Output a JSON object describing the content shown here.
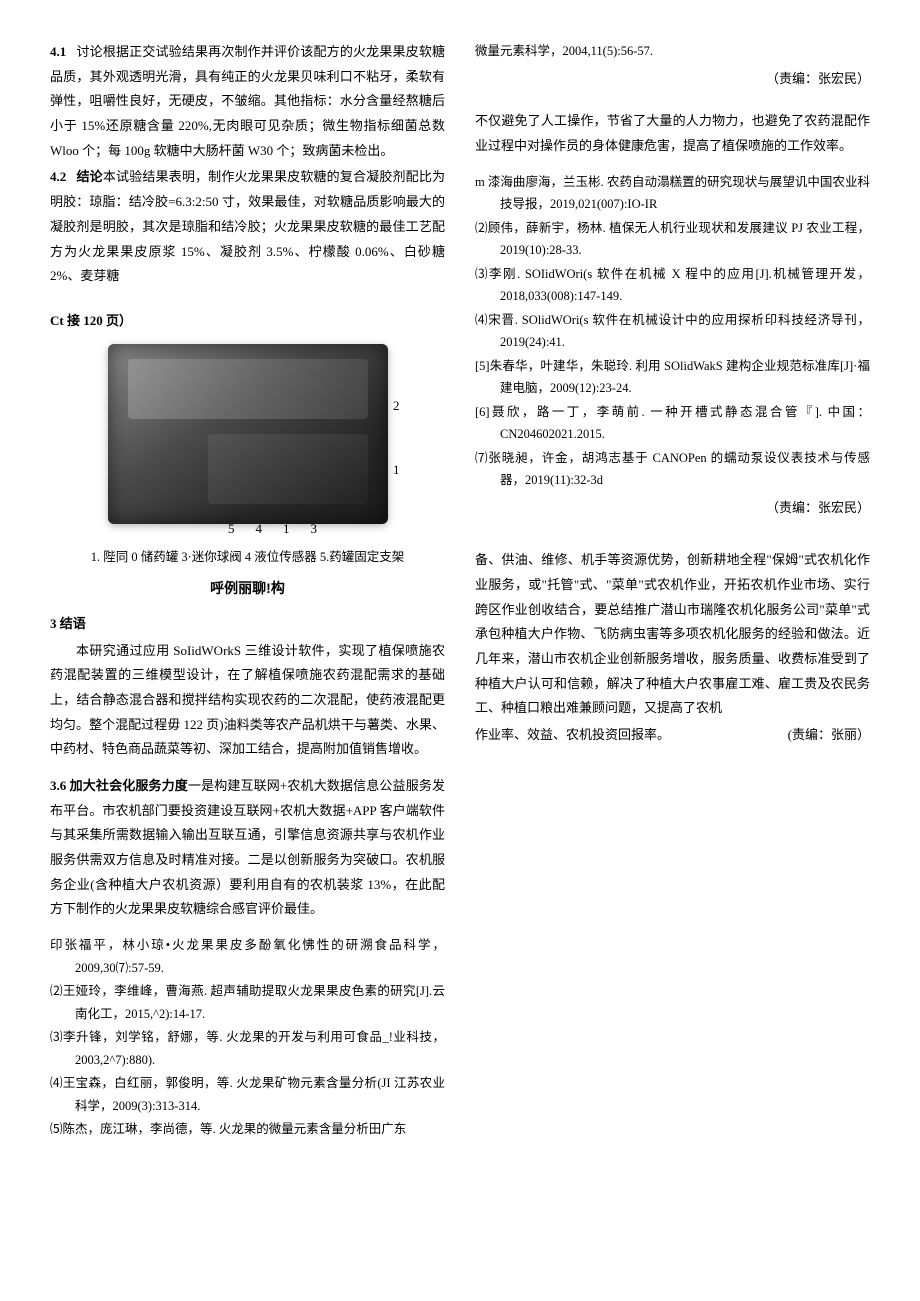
{
  "leftCol": {
    "p41": {
      "num": "4.1",
      "text": "讨论根据正交试验结果再次制作并评价该配方的火龙果果皮软糖品质，其外观透明光滑，具有纯正的火龙果贝味利口不粘牙，柔软有弹性，咀嚼性良好，无硬皮，不皱缩。其他指标：水分含量经熬糖后小于 15%还原糖含量 220%,无肉眼可见杂质；微生物指标细菌总数 Wloo 个；每 100g 软糖中大肠杆菌 W30 个；致病菌未检出。"
    },
    "p42": {
      "num": "4.2",
      "label": "结论",
      "text": "本试验结果表明，制作火龙果果皮软糖的复合凝胶剂配比为明胶：琼脂：结冷胶=6.3:2:50 寸，效果最佳，对软糖品质影响最大的凝胶剂是明胶，其次是琼脂和结冷胶；火龙果果皮软糖的最佳工艺配方为火龙果果皮原浆 15%、凝胶剂 3.5%、柠檬酸 0.06%、白砂糖 2%、麦芽糖"
    },
    "ct": "Ct 接 120 页）",
    "figure": {
      "labels_bottom": [
        "5",
        "4",
        "1",
        "3"
      ],
      "labels_side": [
        "2",
        "1"
      ],
      "caption": "1. 陛同 0 储药罐 3·迷你球阀 4 液位传感器 5.药罐固定支架",
      "title": "呼例丽聊!构"
    },
    "s3": {
      "head": "3 结语",
      "text": "本研究通过应用 SoIidWOrkS 三维设计软件，实现了植保喷施农药混配装置的三维模型设计，在了解植保喷施农药混配需求的基础上，结合静态混合器和搅拌结构实现农药的二次混配，使药液混配更均匀。整个混配过程毋 122 页)油料类等农产品机烘干与薯类、水果、中药材、特色商品蔬菜等初、深加工结合，提高附加值销售增收。"
    },
    "s36": {
      "head": "3.6 加大社会化服务力度",
      "text": "一是构建互联网+农机大数据信息公益服务发布平台。市农机部门要投资建设互联网+农机大数据+APP 客户端软件与其采集所需数据输入输出互联互通，引擎信息资源共享与农机作业服务供需双方信息及时精准对接。二是以创新服务为突破口。农机服务企业(含种植大户农机资源）要利用自有的农机装浆 13%，在此配方下制作的火龙果果皮软糖综合感官评价最佳。"
    },
    "refsA": [
      "印张福平，林小琼•火龙果果皮多酚氧化怫性的研溯食品科学，2009,30⑺:57-59.",
      "⑵王娅玲，李维峰，曹海燕. 超声辅助提取火龙果果皮色素的研究[J].云南化工，2015,^2):14-17.",
      "⑶李升锋，刘学铭，舒娜，等. 火龙果的开发与利用可食品_!业科技，2003,2^7):880).",
      "⑷王宝森，白红丽，郭俊明，等. 火龙果矿物元素含量分析(JI 江苏农业科学，2009(3):313-314.",
      "⑸陈杰，庞江琳，李尚德，等. 火龙果的微量元素含量分析田广东"
    ]
  },
  "rightCol": {
    "refTail": "微量元素科学，2004,11(5):56-57.",
    "editor1": "（责编：张宏民）",
    "p_top": "不仅避免了人工操作，节省了大量的人力物力，也避免了农药混配作业过程中对操作员的身体健康危害，提高了植保喷施的工作效率。",
    "refsB": [
      "m 漆海曲廖海，兰玉彬. 农药自动溻糕置的研究现状与展望讥中国农业科技导报，2019,021(007):IO-IR",
      "⑵顾伟，薛新宇，杨林. 植保无人机行业现状和发展建议 PJ 农业工程，2019(10):28-33.",
      "⑶李刚. SOIidWOri(s 软件在机械 X 程中的应用[J].机械管理开发，2018,033(008):147-149.",
      "⑷宋晋. SOlidWOri(s 软件在机械设计中的应用探析印科技经济导刊，2019(24):41.",
      "[5]朱春华，叶建华，朱聪玲. 利用 SOlidWakS 建构企业规范标准库[J]·福建电脑，2009(12):23-24.",
      "[6]聂欣，路一丁，李萌前. 一种开槽式静态混合管『]. 中国：CN204602021.2015.",
      "⑺张晓昶，许金，胡鸿志基于 CANOPen 的蠕动泵设仪表技术与传感器，2019(11):32-3d"
    ],
    "editor2": "（责编：张宏民）",
    "p_bottom": "备、供油、维修、机手等资源优势，创新耕地全程\"保姆\"式农机化作业服务，或\"托管\"式、\"菜单\"式农机作业，开拓农机作业市场、实行跨区作业创收结合，要总结推广潜山市瑞隆农机化服务公司\"菜单\"式承包种植大户作物、飞防病虫害等多项农机化服务的经验和做法。近几年来，潜山市农机企业创新服务增收，服务质量、收费标准受到了种植大户认可和信赖，解决了种植大户农事雇工难、雇工贵及农民务工、种植口粮出难兼顾问题，又提高了农机",
    "p_last_line": "作业率、效益、农机投资回报率。",
    "editor3": "(责编：张丽）"
  }
}
